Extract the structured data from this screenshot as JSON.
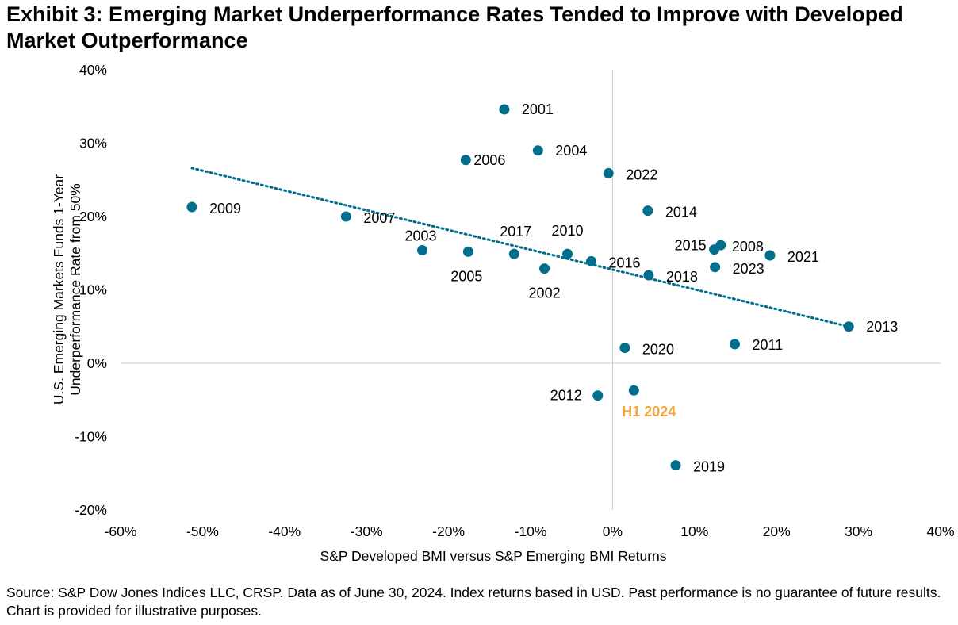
{
  "title": "Exhibit 3: Emerging Market Underperformance Rates Tended to Improve with Developed Market Outperformance",
  "source": "Source: S&P Dow Jones Indices LLC, CRSP. Data as of June 30, 2024. Index returns based in USD. Past performance is no guarantee of future results. Chart is provided for illustrative purposes.",
  "chart_data": {
    "type": "scatter",
    "xlabel": "S&P Developed BMI versus S&P Emerging BMI Returns",
    "ylabel": "U.S. Emerging Markets Funds 1-Year Underperformance Rate from 50%",
    "xlim": [
      -60,
      40
    ],
    "ylim": [
      -20,
      40
    ],
    "xticks": [
      "-60%",
      "-50%",
      "-40%",
      "-30%",
      "-20%",
      "-10%",
      "0%",
      "10%",
      "20%",
      "30%",
      "40%"
    ],
    "yticks": [
      "-20%",
      "-10%",
      "0%",
      "10%",
      "20%",
      "30%",
      "40%"
    ],
    "grid": false,
    "point_color": "#006E8C",
    "highlight_color": "#F2A541",
    "points": [
      {
        "label": "2001",
        "x": -13.2,
        "y": 34.6
      },
      {
        "label": "2006",
        "x": -17.9,
        "y": 27.7
      },
      {
        "label": "2004",
        "x": -9.1,
        "y": 29.0
      },
      {
        "label": "2022",
        "x": -0.5,
        "y": 25.9
      },
      {
        "label": "2009",
        "x": -51.3,
        "y": 21.3
      },
      {
        "label": "2014",
        "x": 4.3,
        "y": 20.8
      },
      {
        "label": "2007",
        "x": -32.5,
        "y": 20.0
      },
      {
        "label": "2003",
        "x": -23.2,
        "y": 15.4
      },
      {
        "label": "2005",
        "x": -17.6,
        "y": 15.2
      },
      {
        "label": "2017",
        "x": -12.0,
        "y": 14.9
      },
      {
        "label": "2010",
        "x": -5.5,
        "y": 14.9
      },
      {
        "label": "2002",
        "x": -8.3,
        "y": 12.9
      },
      {
        "label": "2016",
        "x": -2.6,
        "y": 13.9
      },
      {
        "label": "2018",
        "x": 4.4,
        "y": 12.0
      },
      {
        "label": "2015",
        "x": 12.4,
        "y": 15.5
      },
      {
        "label": "2008",
        "x": 13.2,
        "y": 16.1
      },
      {
        "label": "2023",
        "x": 12.5,
        "y": 13.1
      },
      {
        "label": "2021",
        "x": 19.2,
        "y": 14.7
      },
      {
        "label": "2013",
        "x": 28.8,
        "y": 5.0
      },
      {
        "label": "2011",
        "x": 14.9,
        "y": 2.6
      },
      {
        "label": "2020",
        "x": 1.5,
        "y": 2.1
      },
      {
        "label": "2012",
        "x": -1.8,
        "y": -4.4
      },
      {
        "label": "H1 2024",
        "x": 2.6,
        "y": -3.7,
        "highlight": true
      },
      {
        "label": "2019",
        "x": 7.7,
        "y": -13.9
      }
    ],
    "trendline": {
      "style": "dotted",
      "x": [
        -51.3,
        28.8
      ],
      "y": [
        26.6,
        5.0
      ]
    }
  }
}
